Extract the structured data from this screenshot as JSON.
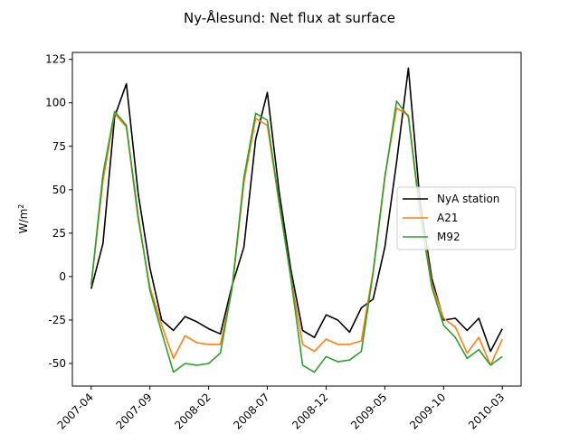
{
  "chart_data": {
    "type": "line",
    "title": "Ny-Ålesund: Net flux at surface",
    "xlabel": "",
    "ylabel_base": "W/m",
    "ylabel_sup": "2",
    "ylim": [
      -63,
      129
    ],
    "yticks": [
      -50,
      -25,
      0,
      25,
      50,
      75,
      100,
      125
    ],
    "xticks": [
      {
        "label": "2007-04",
        "month": 0
      },
      {
        "label": "2007-09",
        "month": 5
      },
      {
        "label": "2008-02",
        "month": 10
      },
      {
        "label": "2008-07",
        "month": 15
      },
      {
        "label": "2008-12",
        "month": 20
      },
      {
        "label": "2009-05",
        "month": 25
      },
      {
        "label": "2009-10",
        "month": 30
      },
      {
        "label": "2010-03",
        "month": 35
      }
    ],
    "xlim": [
      -1.6,
      36.6
    ],
    "legend_position": "center-right",
    "grid": false,
    "x": [
      0,
      1,
      2,
      3,
      4,
      5,
      6,
      7,
      8,
      9,
      10,
      11,
      12,
      13,
      14,
      15,
      16,
      17,
      18,
      19,
      20,
      21,
      22,
      23,
      24,
      25,
      26,
      27,
      28,
      29,
      30,
      31,
      32,
      33,
      34,
      35
    ],
    "series": [
      {
        "name": "NyA station",
        "color": "#000000",
        "values": [
          -7,
          19,
          92,
          111,
          48,
          5,
          -25,
          -31,
          -23,
          -26,
          -30,
          -33,
          -5,
          17,
          79,
          106,
          49,
          4,
          -31,
          -35,
          -22,
          -25,
          -32,
          -18,
          -13,
          17,
          66,
          120,
          43,
          -1,
          -25,
          -24,
          -31,
          -24,
          -43,
          -30
        ]
      },
      {
        "name": "A21",
        "color": "#ff7f0e",
        "values": [
          -5,
          55,
          94,
          86,
          33,
          -6,
          -28,
          -47,
          -34,
          -38,
          -39,
          -39,
          -7,
          54,
          91,
          87,
          42,
          0,
          -39,
          -43,
          -36,
          -39,
          -39,
          -37,
          3,
          58,
          97,
          93,
          38,
          -4,
          -24,
          -29,
          -44,
          -35,
          -51,
          -36
        ]
      },
      {
        "name": "M92",
        "color": "#2ca02c",
        "values": [
          -5,
          59,
          95,
          87,
          35,
          -8,
          -32,
          -55,
          -50,
          -51,
          -50,
          -44,
          -6,
          57,
          94,
          90,
          43,
          -1,
          -51,
          -55,
          -46,
          -49,
          -48,
          -43,
          2,
          57,
          101,
          92,
          36,
          -6,
          -28,
          -35,
          -47,
          -42,
          -51,
          -46
        ]
      }
    ]
  }
}
